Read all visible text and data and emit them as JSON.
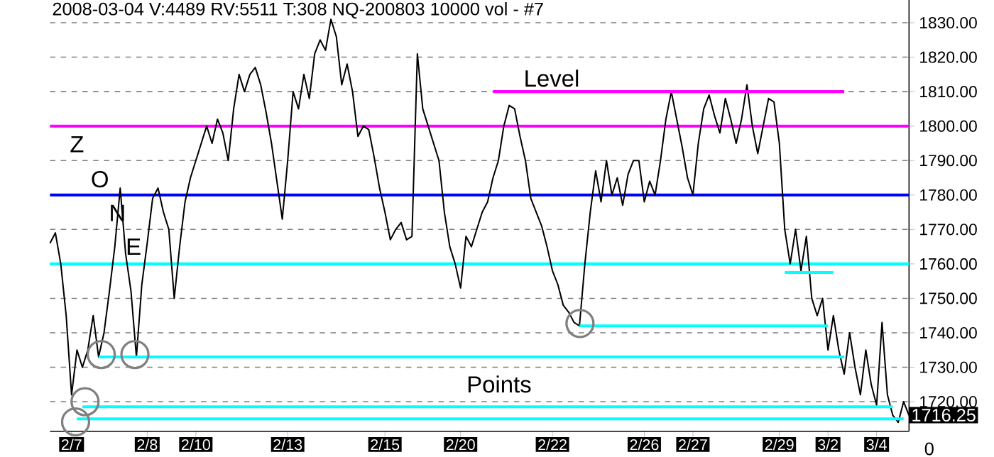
{
  "chart_data": {
    "type": "line",
    "title": "2008-03-04  V:4489  RV:5511  T:308  NQ-200803  10000 vol - #7",
    "categories": [
      null,
      null,
      null,
      null,
      "2/7",
      null,
      null,
      null,
      null,
      null,
      null,
      null,
      null,
      null,
      null,
      null,
      null,
      null,
      "2/8",
      null,
      null,
      null,
      null,
      null,
      null,
      null,
      null,
      "2/10",
      null,
      null,
      null,
      null,
      null,
      null,
      null,
      null,
      null,
      null,
      null,
      null,
      null,
      null,
      null,
      null,
      "2/13",
      null,
      null,
      null,
      null,
      null,
      null,
      null,
      null,
      null,
      null,
      null,
      null,
      null,
      null,
      null,
      null,
      null,
      "2/15",
      null,
      null,
      null,
      null,
      null,
      null,
      null,
      null,
      null,
      null,
      null,
      null,
      null,
      "2/20",
      null,
      null,
      null,
      null,
      null,
      null,
      null,
      null,
      null,
      null,
      null,
      null,
      null,
      null,
      null,
      null,
      "2/22",
      null,
      null,
      null,
      null,
      null,
      null,
      null,
      null,
      null,
      null,
      null,
      null,
      null,
      null,
      null,
      null,
      "2/26",
      null,
      null,
      null,
      null,
      null,
      null,
      null,
      null,
      "2/27",
      null,
      null,
      null,
      null,
      null,
      null,
      null,
      null,
      null,
      null,
      null,
      null,
      null,
      null,
      null,
      "2/29",
      null,
      null,
      null,
      null,
      null,
      null,
      null,
      null,
      "3/2",
      null,
      null,
      null,
      null,
      null,
      null,
      null,
      null,
      "3/4",
      null,
      null,
      null,
      null,
      null,
      null
    ],
    "ylim": [
      1711.4,
      1836.6
    ],
    "yticks": [
      {
        "value": 1720,
        "label": "1720.00"
      },
      {
        "value": 1730,
        "label": "1730.00"
      },
      {
        "value": 1740,
        "label": "1740.00"
      },
      {
        "value": 1750,
        "label": "1750.00"
      },
      {
        "value": 1760,
        "label": "1760.00"
      },
      {
        "value": 1770,
        "label": "1770.00"
      },
      {
        "value": 1780,
        "label": "1780.00"
      },
      {
        "value": 1790,
        "label": "1790.00"
      },
      {
        "value": 1800,
        "label": "1800.00"
      },
      {
        "value": 1810,
        "label": "1810.00"
      },
      {
        "value": 1820,
        "label": "1820.00"
      },
      {
        "value": 1830,
        "label": "1830.00"
      }
    ],
    "grid": "y",
    "marker": "none",
    "line_style": "solid",
    "series": [
      {
        "color": "#000000",
        "values": [
          1766,
          1769,
          1760,
          1745,
          1722,
          1735,
          1730,
          1735,
          1745,
          1733,
          1740,
          1752,
          1765,
          1782,
          1763,
          1752,
          1733,
          1754,
          1766,
          1779,
          1782,
          1775,
          1770,
          1750,
          1765,
          1778,
          1785,
          1790,
          1795,
          1800,
          1795,
          1802,
          1798,
          1790,
          1805,
          1815,
          1810,
          1815,
          1817,
          1812,
          1804,
          1795,
          1784,
          1773,
          1790,
          1810,
          1805,
          1815,
          1808,
          1821,
          1825,
          1822,
          1831,
          1826,
          1812,
          1818,
          1810,
          1797,
          1800,
          1799,
          1791,
          1782,
          1775,
          1767,
          1770,
          1772,
          1767,
          1768,
          1821,
          1805,
          1800,
          1795,
          1790,
          1775,
          1765,
          1760,
          1753,
          1768,
          1765,
          1770,
          1775,
          1778,
          1785,
          1790,
          1800,
          1806,
          1805,
          1797,
          1790,
          1779,
          1775,
          1771,
          1765,
          1758,
          1754,
          1748,
          1746,
          1743,
          1742,
          1760,
          1775,
          1787,
          1778,
          1790,
          1780,
          1785,
          1777,
          1786,
          1790,
          1790,
          1778,
          1784,
          1780,
          1790,
          1802,
          1810,
          1802,
          1794,
          1785,
          1780,
          1795,
          1805,
          1809,
          1803,
          1798,
          1808,
          1802,
          1795,
          1802,
          1812,
          1800,
          1792,
          1800,
          1808,
          1807,
          1795,
          1770,
          1760,
          1770,
          1758,
          1768,
          1750,
          1745,
          1750,
          1735,
          1745,
          1735,
          1728,
          1740,
          1730,
          1722,
          1735,
          1725,
          1719,
          1743,
          1722,
          1716,
          1714,
          1720,
          1716
        ]
      },
      {
        "color": "#ff00ff",
        "values": [
          null,
          null,
          null,
          null,
          null,
          null,
          null,
          null,
          null,
          null,
          null,
          null,
          null,
          null,
          null,
          null,
          null,
          null,
          null,
          null,
          null,
          null,
          null,
          null,
          null,
          null,
          null,
          null,
          null,
          null,
          null,
          null,
          null,
          null,
          null,
          null,
          null,
          null,
          null,
          null,
          null,
          null,
          null,
          null,
          null,
          null,
          null,
          null,
          null,
          null,
          null,
          null,
          null,
          null,
          null,
          null,
          null,
          null,
          null,
          null,
          null,
          null,
          null,
          null,
          null,
          null,
          null,
          null,
          null,
          null,
          null,
          null,
          null,
          null,
          null,
          null,
          null,
          null,
          null,
          null,
          null,
          null,
          1810,
          1810,
          1810,
          1810,
          1810,
          1810,
          1810,
          1810,
          1810,
          1810,
          1810,
          1810,
          1810,
          1810,
          1810,
          1810,
          1810,
          1810,
          1810,
          1810,
          1810,
          1810,
          1810,
          1810,
          1810,
          1810,
          1810,
          1810,
          1810,
          1810,
          1810,
          1810,
          1810,
          1810,
          1810,
          1810,
          1810,
          1810,
          1810,
          1810,
          1810,
          1810,
          1810,
          1810,
          1810,
          1810,
          1810,
          1810,
          1810,
          1810,
          1810,
          1810,
          1810,
          1810,
          1810,
          1810,
          1810,
          1810,
          1810,
          1810,
          1810,
          1810,
          1810,
          1810,
          1810,
          1810,
          null,
          null,
          null,
          null,
          null,
          null,
          null,
          null,
          null,
          null,
          null,
          null
        ]
      },
      {
        "color": "#00ffff",
        "values": [
          null,
          null,
          null,
          null,
          null,
          null,
          null,
          null,
          null,
          null,
          null,
          null,
          null,
          null,
          null,
          null,
          null,
          null,
          null,
          null,
          null,
          null,
          null,
          null,
          null,
          null,
          null,
          null,
          null,
          null,
          null,
          null,
          null,
          null,
          null,
          null,
          null,
          null,
          null,
          null,
          null,
          null,
          null,
          null,
          null,
          null,
          null,
          null,
          null,
          null,
          null,
          null,
          null,
          null,
          null,
          null,
          null,
          null,
          null,
          null,
          null,
          null,
          null,
          null,
          null,
          null,
          null,
          null,
          null,
          null,
          null,
          null,
          null,
          null,
          null,
          null,
          null,
          null,
          null,
          null,
          null,
          null,
          null,
          null,
          null,
          null,
          null,
          null,
          null,
          null,
          null,
          null,
          null,
          null,
          null,
          null,
          null,
          null,
          null,
          null,
          null,
          null,
          null,
          null,
          null,
          null,
          null,
          null,
          null,
          null,
          null,
          null,
          null,
          null,
          null,
          null,
          null,
          null,
          null,
          null,
          null,
          null,
          null,
          null,
          null,
          null,
          null,
          null,
          null,
          null,
          null,
          null,
          null,
          null,
          null,
          null,
          1757.5,
          1757.5,
          1757.5,
          1757.5,
          1757.5,
          1757.5,
          1757.5,
          1757.5,
          1757.5,
          1757.5,
          null,
          null,
          null,
          null,
          null,
          null,
          null,
          null,
          null,
          null,
          null,
          null,
          null,
          null
        ]
      },
      {
        "color": "#00ffff",
        "values": [
          null,
          null,
          null,
          null,
          null,
          null,
          null,
          null,
          null,
          null,
          null,
          null,
          null,
          null,
          null,
          null,
          null,
          null,
          null,
          null,
          null,
          null,
          null,
          null,
          null,
          null,
          null,
          null,
          null,
          null,
          null,
          null,
          null,
          null,
          null,
          null,
          null,
          null,
          null,
          null,
          null,
          null,
          null,
          null,
          null,
          null,
          null,
          null,
          null,
          null,
          null,
          null,
          null,
          null,
          null,
          null,
          null,
          null,
          null,
          null,
          null,
          null,
          null,
          null,
          null,
          null,
          null,
          null,
          null,
          null,
          null,
          null,
          null,
          null,
          null,
          null,
          null,
          null,
          null,
          null,
          null,
          null,
          null,
          null,
          null,
          null,
          null,
          null,
          null,
          null,
          null,
          null,
          null,
          null,
          null,
          null,
          null,
          null,
          1742,
          1742,
          1742,
          1742,
          1742,
          1742,
          1742,
          1742,
          1742,
          1742,
          1742,
          1742,
          1742,
          1742,
          1742,
          1742,
          1742,
          1742,
          1742,
          1742,
          1742,
          1742,
          1742,
          1742,
          1742,
          1742,
          1742,
          1742,
          1742,
          1742,
          1742,
          1742,
          1742,
          1742,
          1742,
          1742,
          1742,
          1742,
          1742,
          1742,
          1742,
          1742,
          1742,
          1742,
          1742,
          1742,
          1742,
          null,
          null,
          null,
          null,
          null,
          null,
          null,
          null,
          null,
          null,
          null,
          null,
          null,
          null,
          null
        ]
      },
      {
        "color": "#00ffff",
        "values": [
          null,
          null,
          null,
          null,
          null,
          null,
          null,
          null,
          null,
          1733,
          1733,
          1733,
          1733,
          1733,
          1733,
          1733,
          1733,
          1733,
          1733,
          1733,
          1733,
          1733,
          1733,
          1733,
          1733,
          1733,
          1733,
          1733,
          1733,
          1733,
          1733,
          1733,
          1733,
          1733,
          1733,
          1733,
          1733,
          1733,
          1733,
          1733,
          1733,
          1733,
          1733,
          1733,
          1733,
          1733,
          1733,
          1733,
          1733,
          1733,
          1733,
          1733,
          1733,
          1733,
          1733,
          1733,
          1733,
          1733,
          1733,
          1733,
          1733,
          1733,
          1733,
          1733,
          1733,
          1733,
          1733,
          1733,
          1733,
          1733,
          1733,
          1733,
          1733,
          1733,
          1733,
          1733,
          1733,
          1733,
          1733,
          1733,
          1733,
          1733,
          1733,
          1733,
          1733,
          1733,
          1733,
          1733,
          1733,
          1733,
          1733,
          1733,
          1733,
          1733,
          1733,
          1733,
          1733,
          1733,
          1733,
          1733,
          1733,
          1733,
          1733,
          1733,
          1733,
          1733,
          1733,
          1733,
          1733,
          1733,
          1733,
          1733,
          1733,
          1733,
          1733,
          1733,
          1733,
          1733,
          1733,
          1733,
          1733,
          1733,
          1733,
          1733,
          1733,
          1733,
          1733,
          1733,
          1733,
          1733,
          1733,
          1733,
          1733,
          1733,
          1733,
          1733,
          1733,
          1733,
          1733,
          1733,
          1733,
          1733,
          1733,
          1733,
          1733,
          1733,
          1733,
          1733,
          null,
          null,
          null,
          null,
          null,
          null,
          null,
          null,
          null,
          null,
          null,
          null
        ]
      },
      {
        "color": "#00ffff",
        "values": [
          null,
          null,
          null,
          null,
          null,
          null,
          1718.5,
          1718.5,
          1718.5,
          1718.5,
          1718.5,
          1718.5,
          1718.5,
          1718.5,
          1718.5,
          1718.5,
          1718.5,
          1718.5,
          1718.5,
          1718.5,
          1718.5,
          1718.5,
          1718.5,
          1718.5,
          1718.5,
          1718.5,
          1718.5,
          1718.5,
          1718.5,
          1718.5,
          1718.5,
          1718.5,
          1718.5,
          1718.5,
          1718.5,
          1718.5,
          1718.5,
          1718.5,
          1718.5,
          1718.5,
          1718.5,
          1718.5,
          1718.5,
          1718.5,
          1718.5,
          1718.5,
          1718.5,
          1718.5,
          1718.5,
          1718.5,
          1718.5,
          1718.5,
          1718.5,
          1718.5,
          1718.5,
          1718.5,
          1718.5,
          1718.5,
          1718.5,
          1718.5,
          1718.5,
          1718.5,
          1718.5,
          1718.5,
          1718.5,
          1718.5,
          1718.5,
          1718.5,
          1718.5,
          1718.5,
          1718.5,
          1718.5,
          1718.5,
          1718.5,
          1718.5,
          1718.5,
          1718.5,
          1718.5,
          1718.5,
          1718.5,
          1718.5,
          1718.5,
          1718.5,
          1718.5,
          1718.5,
          1718.5,
          1718.5,
          1718.5,
          1718.5,
          1718.5,
          1718.5,
          1718.5,
          1718.5,
          1718.5,
          1718.5,
          1718.5,
          1718.5,
          1718.5,
          1718.5,
          1718.5,
          1718.5,
          1718.5,
          1718.5,
          1718.5,
          1718.5,
          1718.5,
          1718.5,
          1718.5,
          1718.5,
          1718.5,
          1718.5,
          1718.5,
          1718.5,
          1718.5,
          1718.5,
          1718.5,
          1718.5,
          1718.5,
          1718.5,
          1718.5,
          1718.5,
          1718.5,
          1718.5,
          1718.5,
          1718.5,
          1718.5,
          1718.5,
          1718.5,
          1718.5,
          1718.5,
          1718.5,
          1718.5,
          1718.5,
          1718.5,
          1718.5,
          1718.5,
          1718.5,
          1718.5,
          1718.5,
          1718.5,
          1718.5,
          1718.5,
          1718.5,
          1718.5,
          1718.5,
          1718.5,
          1718.5,
          1718.5,
          1718.5,
          1718.5,
          1718.5,
          1718.5,
          1718.5,
          1718.5,
          1718.5,
          1718.5,
          1718.5,
          null,
          null,
          null
        ]
      },
      {
        "color": "#00ffff",
        "values": [
          null,
          null,
          null,
          null,
          null,
          1715,
          1715,
          1715,
          1715,
          1715,
          1715,
          1715,
          1715,
          1715,
          1715,
          1715,
          1715,
          1715,
          1715,
          1715,
          1715,
          1715,
          1715,
          1715,
          1715,
          1715,
          1715,
          1715,
          1715,
          1715,
          1715,
          1715,
          1715,
          1715,
          1715,
          1715,
          1715,
          1715,
          1715,
          1715,
          1715,
          1715,
          1715,
          1715,
          1715,
          1715,
          1715,
          1715,
          1715,
          1715,
          1715,
          1715,
          1715,
          1715,
          1715,
          1715,
          1715,
          1715,
          1715,
          1715,
          1715,
          1715,
          1715,
          1715,
          1715,
          1715,
          1715,
          1715,
          1715,
          1715,
          1715,
          1715,
          1715,
          1715,
          1715,
          1715,
          1715,
          1715,
          1715,
          1715,
          1715,
          1715,
          1715,
          1715,
          1715,
          1715,
          1715,
          1715,
          1715,
          1715,
          1715,
          1715,
          1715,
          1715,
          1715,
          1715,
          1715,
          1715,
          1715,
          1715,
          1715,
          1715,
          1715,
          1715,
          1715,
          1715,
          1715,
          1715,
          1715,
          1715,
          1715,
          1715,
          1715,
          1715,
          1715,
          1715,
          1715,
          1715,
          1715,
          1715,
          1715,
          1715,
          1715,
          1715,
          1715,
          1715,
          1715,
          1715,
          1715,
          1715,
          1715,
          1715,
          1715,
          1715,
          1715,
          1715,
          1715,
          1715,
          1715,
          1715,
          1715,
          1715,
          1715,
          1715,
          1715,
          1715,
          1715,
          1715,
          1715,
          1715,
          1715,
          1715,
          1715,
          1715,
          1715,
          1715,
          1715,
          1715,
          1715,
          null
        ]
      }
    ],
    "ref_lines": [
      {
        "axis": "y",
        "value": 1800,
        "color": "#ff00ff"
      },
      {
        "axis": "y",
        "value": 1780,
        "color": "#0000ff"
      },
      {
        "axis": "y",
        "value": 1760,
        "color": "#00ffff"
      }
    ],
    "annotations": [
      "Level",
      "Points",
      "Z",
      "O",
      "N",
      "E",
      "1716.25",
      "0"
    ]
  }
}
